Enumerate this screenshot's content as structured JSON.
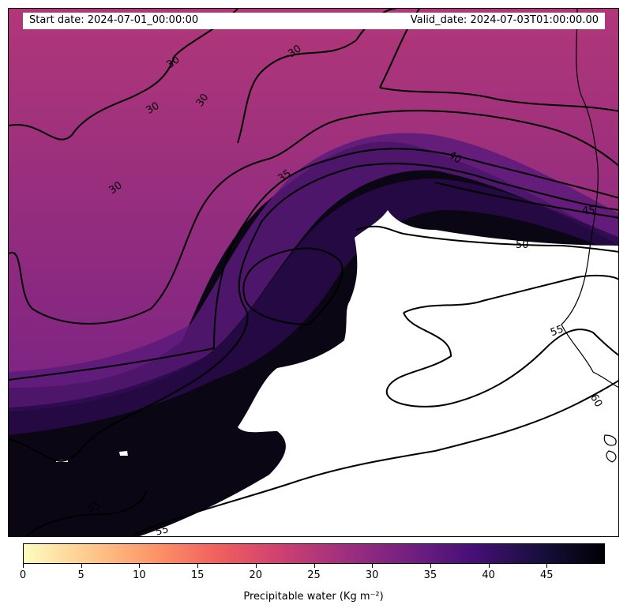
{
  "header": {
    "start_date": "Start date: 2024-07-01_00:00:00",
    "valid_date": "Valid_date: 2024-07-03T01:00:00.00"
  },
  "map": {
    "field": "Precipitable water",
    "colormap": "magma_r",
    "contour_levels": [
      30,
      35,
      40,
      45,
      50,
      55,
      60
    ],
    "contour_labels": [
      "30",
      "30",
      "30",
      "30",
      "30",
      "35",
      "40",
      "45",
      "50",
      "55",
      "55",
      "55",
      "60"
    ]
  },
  "colorbar": {
    "min": 0,
    "max": 50,
    "ticks": [
      "0",
      "5",
      "10",
      "15",
      "20",
      "25",
      "30",
      "35",
      "40",
      "45"
    ],
    "tick_values": [
      0,
      5,
      10,
      15,
      20,
      25,
      30,
      35,
      40,
      45
    ],
    "label": "Precipitable water (Kg m⁻²)",
    "colors": [
      "#fcfdbf",
      "#feca8d",
      "#fd9668",
      "#f1605d",
      "#cd4071",
      "#9e2f7f",
      "#721f81",
      "#440f76",
      "#180f3d",
      "#000004"
    ]
  }
}
